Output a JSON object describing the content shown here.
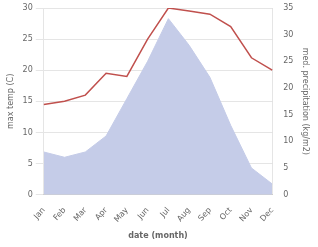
{
  "chart_data": {
    "type": "line",
    "categories": [
      "Jan",
      "Feb",
      "Mar",
      "Apr",
      "May",
      "Jun",
      "Jul",
      "Aug",
      "Sep",
      "Oct",
      "Nov",
      "Dec"
    ],
    "series": [
      {
        "type": "area",
        "axis": "y2",
        "color": "#c5cce8",
        "values": [
          8.0,
          7.0,
          8.0,
          11.0,
          18.0,
          25.0,
          33.0,
          28.0,
          22.0,
          13.0,
          5.0,
          2.0
        ]
      },
      {
        "type": "line",
        "color": "#c0504d",
        "values": [
          14.5,
          15.0,
          16.0,
          19.5,
          19.0,
          25.0,
          30.0,
          29.5,
          29.0,
          27.0,
          22.0,
          20.0
        ]
      }
    ],
    "xlabel": "date (month)",
    "ylabel": "max temp (C)",
    "y2label": "med. precipitation (kg/m2)",
    "ylim": [
      0,
      30
    ],
    "yticks": [
      0,
      5,
      10,
      15,
      20,
      25,
      30
    ],
    "y2lim": [
      0,
      35
    ],
    "y2ticks": [
      0,
      5,
      10,
      15,
      20,
      25,
      30,
      35
    ],
    "grid": true
  }
}
